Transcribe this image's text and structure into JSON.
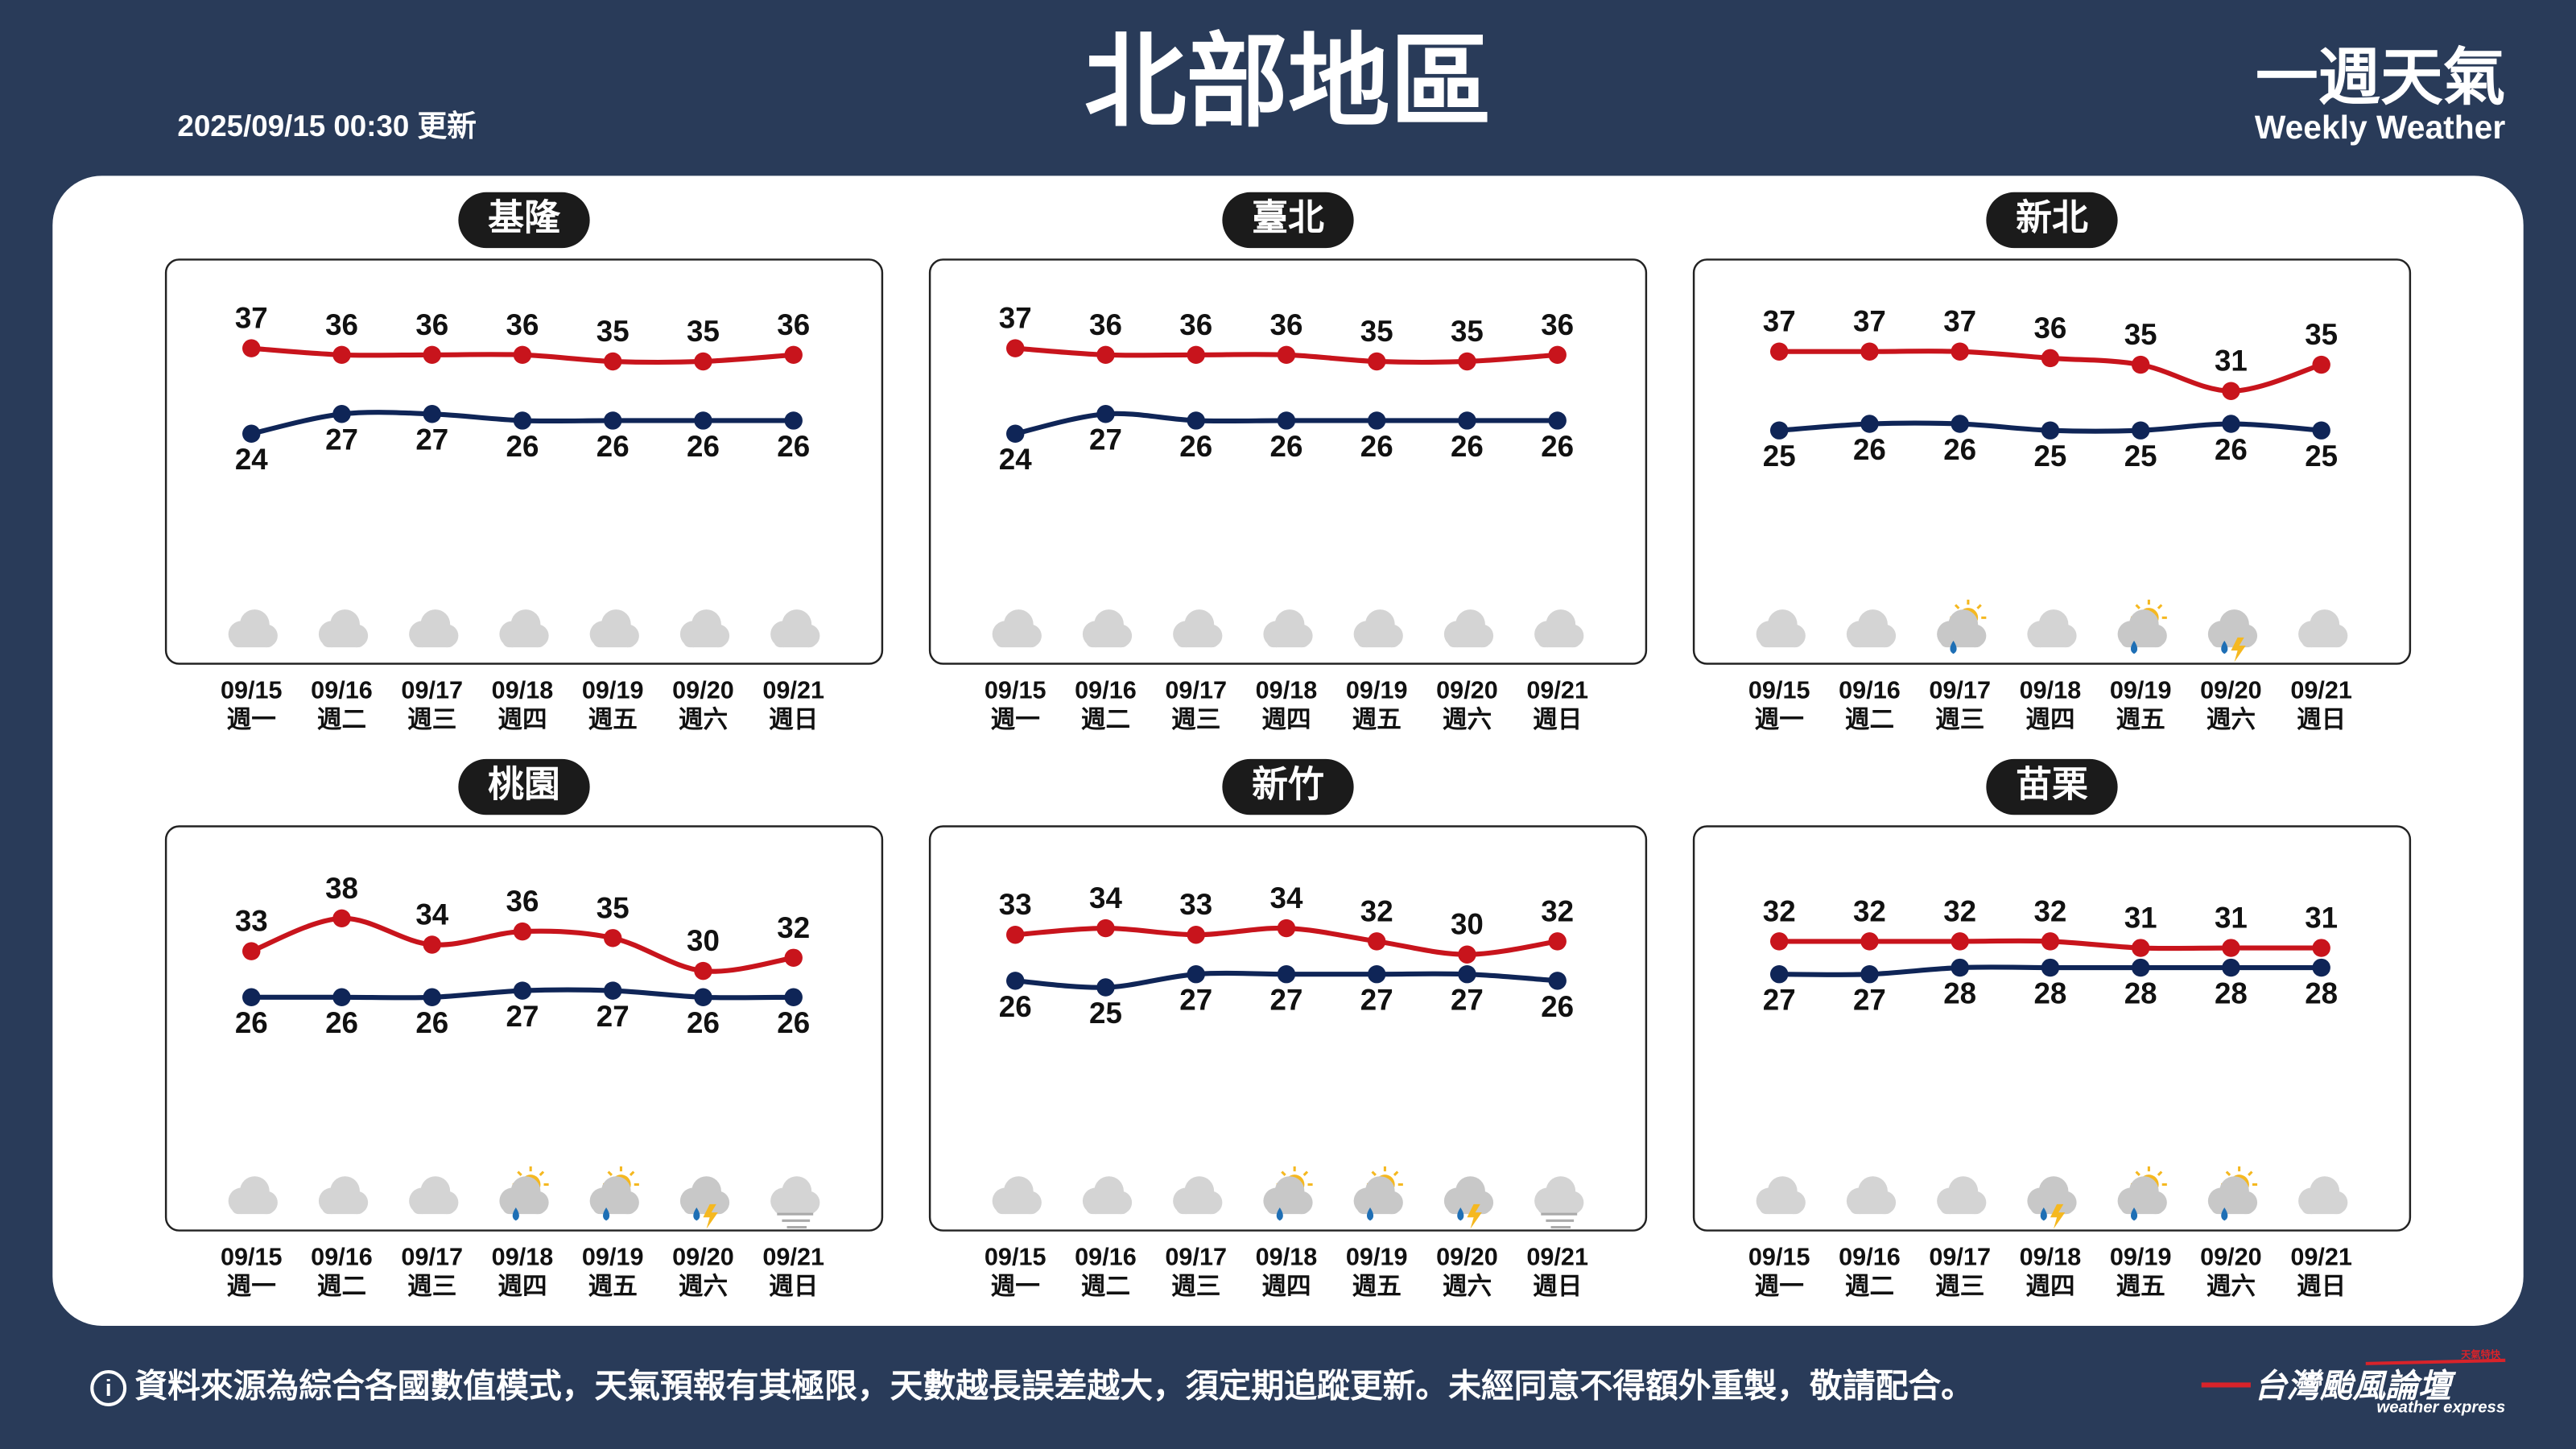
{
  "header": {
    "title": "北部地區",
    "updated": "2025/09/15 00:30 更新",
    "brand": "一週天氣",
    "brand_en": "Weekly Weather"
  },
  "footer": {
    "note": "資料來源為綜合各國數值模式，天氣預報有其極限，天數越長誤差越大，須定期追蹤更新。未經同意不得額外重製，敬請配合。",
    "logo": "台灣颱風論壇",
    "logo_tag": "天氣特快",
    "logo_en": "weather express"
  },
  "chart_data": [
    {
      "type": "line",
      "title": "基隆",
      "categories": [
        "09/15",
        "09/16",
        "09/17",
        "09/18",
        "09/19",
        "09/20",
        "09/21"
      ],
      "weekdays": [
        "週一",
        "週二",
        "週三",
        "週四",
        "週五",
        "週六",
        "週日"
      ],
      "icons": [
        "cloudy",
        "cloudy",
        "cloudy",
        "cloudy",
        "cloudy",
        "cloudy",
        "cloudy"
      ],
      "series": [
        {
          "color": "#c8141c",
          "values": [
            37,
            36,
            36,
            36,
            35,
            35,
            36
          ]
        },
        {
          "color": "#0f2557",
          "values": [
            24,
            27,
            27,
            26,
            26,
            26,
            26
          ]
        }
      ]
    },
    {
      "type": "line",
      "title": "臺北",
      "categories": [
        "09/15",
        "09/16",
        "09/17",
        "09/18",
        "09/19",
        "09/20",
        "09/21"
      ],
      "weekdays": [
        "週一",
        "週二",
        "週三",
        "週四",
        "週五",
        "週六",
        "週日"
      ],
      "icons": [
        "cloudy",
        "cloudy",
        "cloudy",
        "cloudy",
        "cloudy",
        "cloudy",
        "cloudy"
      ],
      "series": [
        {
          "color": "#c8141c",
          "values": [
            37,
            36,
            36,
            36,
            35,
            35,
            36
          ]
        },
        {
          "color": "#0f2557",
          "values": [
            24,
            27,
            26,
            26,
            26,
            26,
            26
          ]
        }
      ]
    },
    {
      "type": "line",
      "title": "新北",
      "categories": [
        "09/15",
        "09/16",
        "09/17",
        "09/18",
        "09/19",
        "09/20",
        "09/21"
      ],
      "weekdays": [
        "週一",
        "週二",
        "週三",
        "週四",
        "週五",
        "週六",
        "週日"
      ],
      "icons": [
        "cloudy",
        "cloudy",
        "sun-rain",
        "cloudy",
        "sun-rain",
        "thunder",
        "cloudy"
      ],
      "series": [
        {
          "color": "#c8141c",
          "values": [
            37,
            37,
            37,
            36,
            35,
            31,
            35
          ]
        },
        {
          "color": "#0f2557",
          "values": [
            25,
            26,
            26,
            25,
            25,
            26,
            25
          ]
        }
      ]
    },
    {
      "type": "line",
      "title": "桃園",
      "categories": [
        "09/15",
        "09/16",
        "09/17",
        "09/18",
        "09/19",
        "09/20",
        "09/21"
      ],
      "weekdays": [
        "週一",
        "週二",
        "週三",
        "週四",
        "週五",
        "週六",
        "週日"
      ],
      "icons": [
        "cloudy",
        "cloudy",
        "cloudy",
        "sun-rain",
        "sun-rain",
        "thunder",
        "fog"
      ],
      "series": [
        {
          "color": "#c8141c",
          "values": [
            33,
            38,
            34,
            36,
            35,
            30,
            32
          ]
        },
        {
          "color": "#0f2557",
          "values": [
            26,
            26,
            26,
            27,
            27,
            26,
            26
          ]
        }
      ]
    },
    {
      "type": "line",
      "title": "新竹",
      "categories": [
        "09/15",
        "09/16",
        "09/17",
        "09/18",
        "09/19",
        "09/20",
        "09/21"
      ],
      "weekdays": [
        "週一",
        "週二",
        "週三",
        "週四",
        "週五",
        "週六",
        "週日"
      ],
      "icons": [
        "cloudy",
        "cloudy",
        "cloudy",
        "sun-rain",
        "sun-rain",
        "thunder",
        "fog"
      ],
      "series": [
        {
          "color": "#c8141c",
          "values": [
            33,
            34,
            33,
            34,
            32,
            30,
            32
          ]
        },
        {
          "color": "#0f2557",
          "values": [
            26,
            25,
            27,
            27,
            27,
            27,
            26
          ]
        }
      ]
    },
    {
      "type": "line",
      "title": "苗栗",
      "categories": [
        "09/15",
        "09/16",
        "09/17",
        "09/18",
        "09/19",
        "09/20",
        "09/21"
      ],
      "weekdays": [
        "週一",
        "週二",
        "週三",
        "週四",
        "週五",
        "週六",
        "週日"
      ],
      "icons": [
        "cloudy",
        "cloudy",
        "cloudy",
        "thunder",
        "sun-rain",
        "sun-rain",
        "cloudy"
      ],
      "series": [
        {
          "color": "#c8141c",
          "values": [
            32,
            32,
            32,
            32,
            31,
            31,
            31
          ]
        },
        {
          "color": "#0f2557",
          "values": [
            27,
            27,
            28,
            28,
            28,
            28,
            28
          ]
        }
      ]
    }
  ]
}
